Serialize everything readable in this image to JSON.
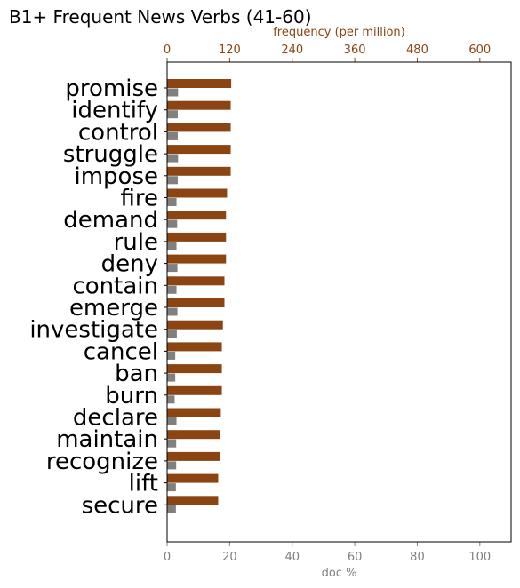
{
  "chart_data": {
    "type": "bar",
    "title": "B1+ Frequent News Verbs (41-60)",
    "categories": [
      "promise",
      "identify",
      "control",
      "struggle",
      "impose",
      "fire",
      "demand",
      "rule",
      "deny",
      "contain",
      "emerge",
      "investigate",
      "cancel",
      "ban",
      "burn",
      "declare",
      "maintain",
      "recognize",
      "lift",
      "secure"
    ],
    "series": [
      {
        "axis": "top",
        "color": "#8b4513",
        "values": [
          123,
          122,
          122,
          122,
          122,
          115,
          113,
          113,
          113,
          110,
          110,
          107,
          105,
          105,
          105,
          103,
          101,
          101,
          98,
          98
        ]
      },
      {
        "axis": "bottom",
        "color": "#808080",
        "values": [
          3.5,
          3.4,
          3.4,
          3.5,
          3.4,
          3.0,
          3.2,
          3.0,
          3.3,
          3.0,
          3.3,
          3.1,
          2.6,
          2.6,
          2.4,
          3.0,
          2.9,
          2.9,
          2.8,
          2.8
        ]
      }
    ],
    "x_top": {
      "label": "frequency (per million)",
      "range": [
        0,
        660
      ],
      "ticks": [
        0,
        120,
        240,
        360,
        480,
        600
      ]
    },
    "x_bottom": {
      "label": "doc %",
      "range": [
        0,
        110
      ],
      "ticks": [
        0,
        20,
        40,
        60,
        80,
        100
      ]
    },
    "grid": false,
    "legend": "none"
  }
}
